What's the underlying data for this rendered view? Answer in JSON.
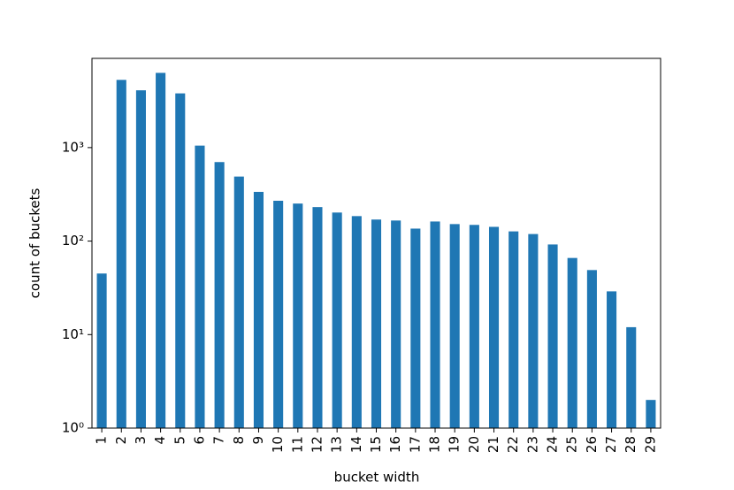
{
  "chart_data": {
    "type": "bar",
    "categories": [
      "1",
      "2",
      "3",
      "4",
      "5",
      "6",
      "7",
      "8",
      "9",
      "10",
      "11",
      "12",
      "13",
      "14",
      "15",
      "16",
      "17",
      "18",
      "19",
      "20",
      "21",
      "22",
      "23",
      "24",
      "25",
      "26",
      "27",
      "28",
      "29"
    ],
    "values": [
      45,
      5300,
      4100,
      6300,
      3800,
      1050,
      700,
      490,
      336,
      270,
      252,
      231,
      202,
      185,
      170,
      166,
      136,
      162,
      152,
      149,
      142,
      127,
      119,
      92,
      66,
      49,
      29,
      12,
      2
    ],
    "color": "#1f77b4",
    "xlabel": "bucket width",
    "ylabel": "count of buckets",
    "ylim": [
      1,
      9000
    ],
    "yscale": "log",
    "yticks": [
      {
        "value": 1,
        "label": "10⁰"
      },
      {
        "value": 10,
        "label": "10¹"
      },
      {
        "value": 100,
        "label": "10²"
      },
      {
        "value": 1000,
        "label": "10³"
      }
    ],
    "grid": false
  }
}
